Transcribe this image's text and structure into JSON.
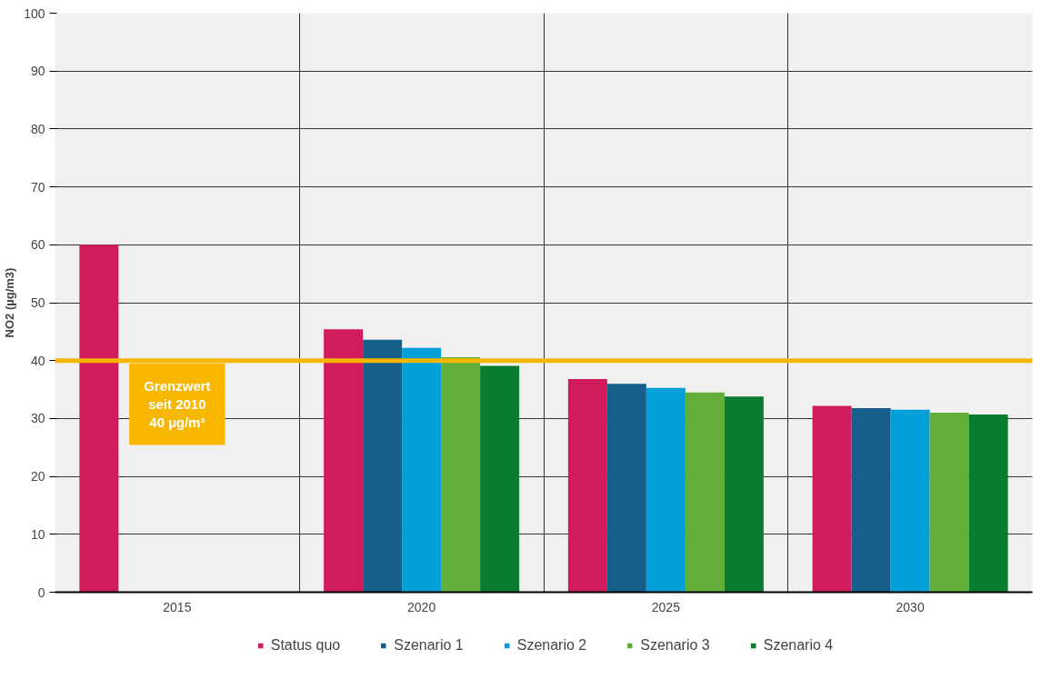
{
  "chart_data": {
    "type": "bar",
    "ylabel": "NO2 (µg/m3)",
    "categories": [
      "2015",
      "2020",
      "2025",
      "2030"
    ],
    "series": [
      {
        "name": "Status quo",
        "color": "#d01c5c",
        "values": [
          60,
          45.4,
          36.8,
          32.2
        ]
      },
      {
        "name": "Szenario 1",
        "color": "#155f8a",
        "values": [
          null,
          43.6,
          36.0,
          31.8
        ]
      },
      {
        "name": "Szenario 2",
        "color": "#029fd9",
        "values": [
          null,
          42.2,
          35.3,
          31.5
        ]
      },
      {
        "name": "Szenario 3",
        "color": "#62b03a",
        "values": [
          null,
          40.6,
          34.5,
          31.0
        ]
      },
      {
        "name": "Szenario 4",
        "color": "#0a7c30",
        "values": [
          null,
          39.1,
          33.8,
          30.7
        ]
      }
    ],
    "ylim": [
      0,
      100
    ],
    "yticks": [
      0,
      10,
      20,
      30,
      40,
      50,
      60,
      70,
      80,
      90,
      100
    ],
    "ref_lines": [
      {
        "axis": "y",
        "value": 40,
        "label": "Grenzwert\nseit 2010\n40 µg/m³",
        "color": "#f7b600"
      }
    ],
    "grid": true,
    "legend": "bottom"
  }
}
